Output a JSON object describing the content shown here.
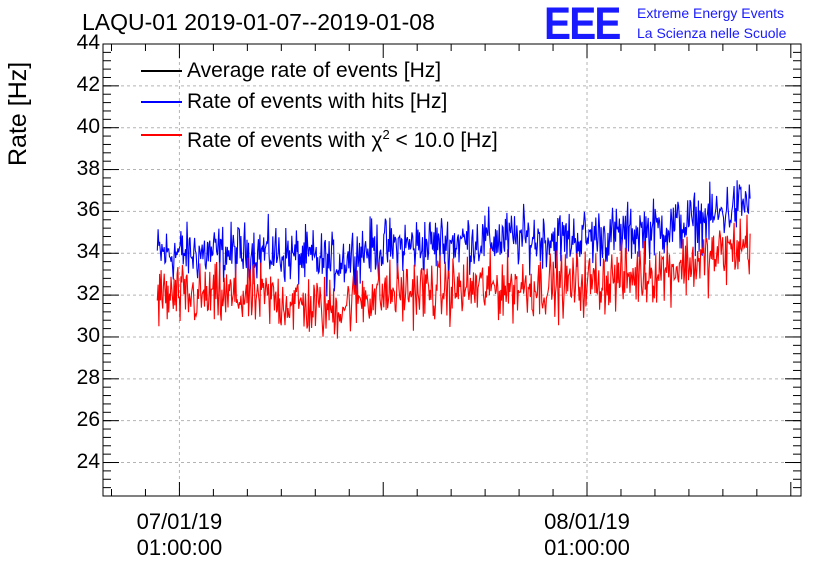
{
  "header": {
    "title": "LAQU-01 2019-01-07--2019-01-08",
    "logo_text": "EEE",
    "logo_line1": "Extreme Energy Events",
    "logo_line2": "La Scienza nelle Scuole"
  },
  "colors": {
    "average": "#000000",
    "hits": "#0000ff",
    "chi2": "#ff0000",
    "grid": "#b4b4b4",
    "logo": "#1a1aff"
  },
  "chart_data": {
    "type": "line",
    "title": "LAQU-01 2019-01-07--2019-01-08",
    "ylabel": "Rate [Hz]",
    "xlabel": "",
    "ylim": [
      22.4,
      44
    ],
    "yticks": [
      {
        "value": 24,
        "label": "24"
      },
      {
        "value": 26,
        "label": "26"
      },
      {
        "value": 28,
        "label": "28"
      },
      {
        "value": 30,
        "label": "30"
      },
      {
        "value": 32,
        "label": "32"
      },
      {
        "value": 34,
        "label": "34"
      },
      {
        "value": 36,
        "label": "36"
      },
      {
        "value": 38,
        "label": "38"
      },
      {
        "value": 40,
        "label": "40"
      },
      {
        "value": 42,
        "label": "42"
      },
      {
        "value": 44,
        "label": "44"
      }
    ],
    "xlim_hours": [
      -4.5,
      36.6
    ],
    "xticks": [
      {
        "hour": 0,
        "date": "07/01/19",
        "time": "01:00:00"
      },
      {
        "hour": 24,
        "date": "08/01/19",
        "time": "01:00:00"
      }
    ],
    "x_range_hours": [
      -1.3,
      33.6
    ],
    "grid": true,
    "legend_position": "top-left",
    "series": [
      {
        "name": "Average rate of events [Hz]",
        "legend": "Average rate of events [Hz]",
        "color": "#000000",
        "x_hours": [
          -1.3,
          33.6
        ],
        "values": [],
        "noise": 0
      },
      {
        "name": "Rate of events with hits [Hz]",
        "legend": "Rate of events with hits [Hz]",
        "color": "#0000ff",
        "x_hours": [
          -1.3,
          2,
          5,
          8,
          9,
          11,
          14,
          17,
          20,
          23,
          26,
          29,
          31,
          33,
          33.6
        ],
        "values": [
          34.0,
          34.0,
          34.1,
          33.7,
          33.5,
          34.2,
          34.4,
          34.6,
          34.7,
          34.7,
          34.9,
          35.3,
          35.6,
          36.3,
          36.5
        ],
        "noise": 0.9
      },
      {
        "name": "Rate of events with chi2 < 10.0 [Hz]",
        "legend_prefix": "Rate of events with ",
        "legend_symbol": "χ",
        "legend_sup": "2",
        "legend_suffix": " < 10.0 [Hz]",
        "color": "#ff0000",
        "x_hours": [
          -1.3,
          2,
          5,
          8,
          9,
          11,
          14,
          17,
          20,
          23,
          26,
          29,
          31,
          33,
          33.6
        ],
        "values": [
          31.9,
          31.9,
          31.9,
          31.4,
          31.3,
          32.0,
          32.2,
          32.3,
          32.4,
          32.5,
          32.8,
          33.3,
          33.7,
          34.3,
          34.6
        ],
        "noise": 1.0
      }
    ]
  }
}
